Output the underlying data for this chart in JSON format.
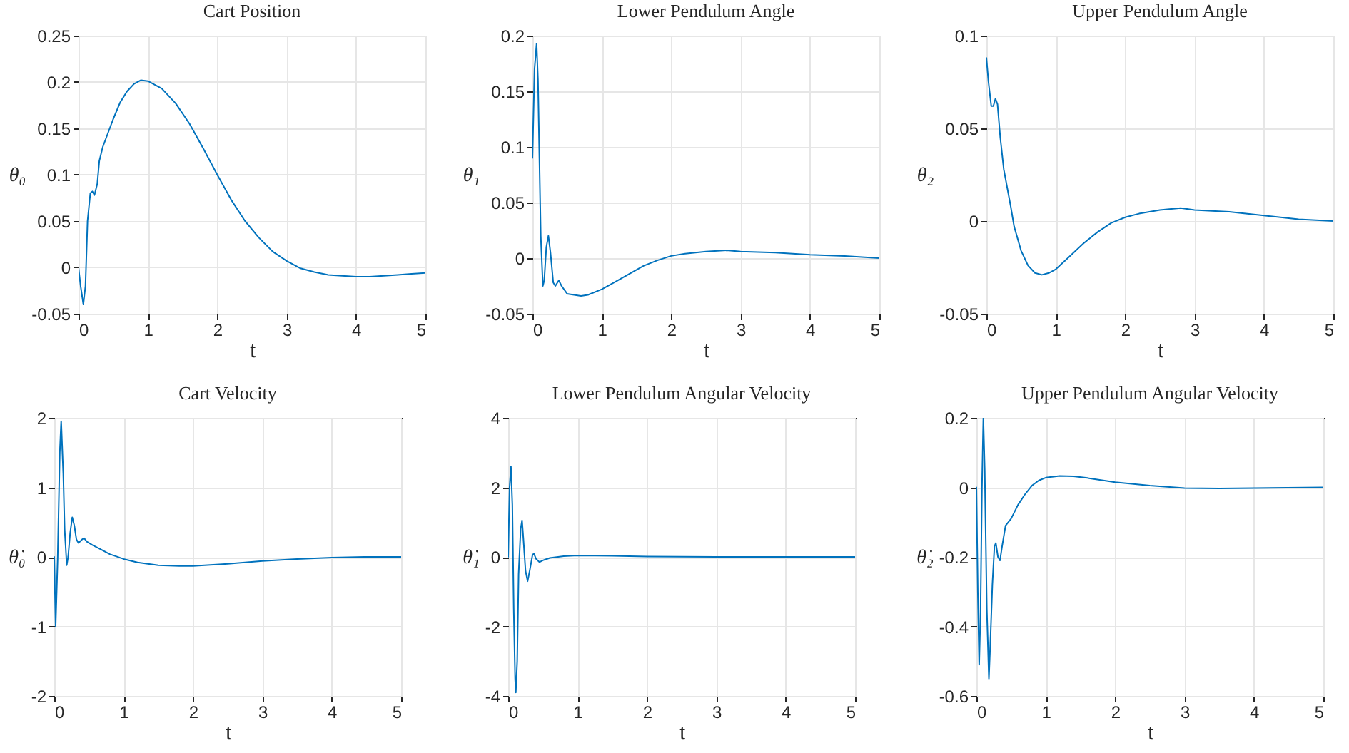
{
  "chart_data": [
    {
      "type": "line",
      "title": "Cart Position",
      "xlabel": "t",
      "ylabel": "θ₀",
      "grid": true,
      "xlim": [
        0,
        5
      ],
      "xticks": [
        0,
        1,
        2,
        3,
        4,
        5
      ],
      "ylim": [
        -0.05,
        0.25
      ],
      "yticks": [
        -0.05,
        0,
        0.05,
        0.1,
        0.15,
        0.2,
        0.25
      ],
      "x": [
        0,
        0.03,
        0.07,
        0.1,
        0.13,
        0.17,
        0.2,
        0.23,
        0.27,
        0.3,
        0.35,
        0.4,
        0.5,
        0.6,
        0.7,
        0.8,
        0.9,
        1.0,
        1.2,
        1.4,
        1.6,
        1.8,
        2.0,
        2.2,
        2.4,
        2.6,
        2.8,
        3.0,
        3.2,
        3.4,
        3.6,
        3.8,
        4.0,
        4.2,
        4.4,
        4.6,
        4.8,
        5
      ],
      "series": [
        {
          "color": "#0072bd",
          "values": [
            0,
            -0.02,
            -0.04,
            -0.02,
            0.05,
            0.08,
            0.082,
            0.078,
            0.09,
            0.115,
            0.13,
            0.14,
            0.16,
            0.178,
            0.19,
            0.198,
            0.202,
            0.201,
            0.193,
            0.177,
            0.155,
            0.128,
            0.1,
            0.073,
            0.05,
            0.032,
            0.017,
            0.007,
            -0.001,
            -0.005,
            -0.008,
            -0.009,
            -0.01,
            -0.01,
            -0.009,
            -0.008,
            -0.007,
            -0.006
          ]
        }
      ]
    },
    {
      "type": "line",
      "title": "Lower Pendulum Angle",
      "xlabel": "t",
      "ylabel": "θ₁",
      "grid": true,
      "xlim": [
        0,
        5
      ],
      "xticks": [
        0,
        1,
        2,
        3,
        4,
        5
      ],
      "ylim": [
        -0.05,
        0.2
      ],
      "yticks": [
        -0.05,
        0,
        0.05,
        0.1,
        0.15,
        0.2
      ],
      "x": [
        0,
        0.03,
        0.06,
        0.08,
        0.1,
        0.12,
        0.15,
        0.17,
        0.2,
        0.23,
        0.26,
        0.3,
        0.33,
        0.38,
        0.42,
        0.5,
        0.6,
        0.7,
        0.8,
        1.0,
        1.2,
        1.4,
        1.6,
        1.8,
        2.0,
        2.2,
        2.5,
        2.8,
        3.0,
        3.5,
        4.0,
        4.5,
        5
      ],
      "series": [
        {
          "color": "#0072bd",
          "values": [
            0.09,
            0.17,
            0.193,
            0.16,
            0.09,
            0.02,
            -0.025,
            -0.02,
            0.01,
            0.02,
            0.005,
            -0.022,
            -0.025,
            -0.02,
            -0.025,
            -0.032,
            -0.033,
            -0.034,
            -0.033,
            -0.028,
            -0.021,
            -0.014,
            -0.007,
            -0.002,
            0.002,
            0.004,
            0.006,
            0.007,
            0.006,
            0.005,
            0.003,
            0.002,
            0
          ]
        }
      ]
    },
    {
      "type": "line",
      "title": "Upper Pendulum Angle",
      "xlabel": "t",
      "ylabel": "θ₂",
      "grid": true,
      "xlim": [
        0,
        5
      ],
      "xticks": [
        0,
        1,
        2,
        3,
        4,
        5
      ],
      "ylim": [
        -0.05,
        0.1
      ],
      "yticks": [
        -0.05,
        0,
        0.05,
        0.1
      ],
      "x": [
        0,
        0.03,
        0.07,
        0.1,
        0.13,
        0.16,
        0.2,
        0.25,
        0.3,
        0.35,
        0.4,
        0.5,
        0.6,
        0.7,
        0.8,
        0.9,
        1.0,
        1.2,
        1.4,
        1.6,
        1.8,
        2.0,
        2.2,
        2.5,
        2.8,
        3.0,
        3.5,
        4.0,
        4.5,
        5
      ],
      "series": [
        {
          "color": "#0072bd",
          "values": [
            0.088,
            0.075,
            0.062,
            0.062,
            0.066,
            0.063,
            0.045,
            0.028,
            0.018,
            0.008,
            -0.003,
            -0.016,
            -0.024,
            -0.028,
            -0.029,
            -0.028,
            -0.026,
            -0.019,
            -0.012,
            -0.006,
            -0.001,
            0.002,
            0.004,
            0.006,
            0.007,
            0.006,
            0.005,
            0.003,
            0.001,
            0
          ]
        }
      ]
    },
    {
      "type": "line",
      "title": "Cart Velocity",
      "xlabel": "t",
      "ylabel": "θ̇₀",
      "grid": true,
      "xlim": [
        0,
        5
      ],
      "xticks": [
        0,
        1,
        2,
        3,
        4,
        5
      ],
      "ylim": [
        -2,
        2
      ],
      "yticks": [
        -2,
        -1,
        0,
        1,
        2
      ],
      "x": [
        0,
        0.02,
        0.05,
        0.08,
        0.1,
        0.13,
        0.15,
        0.18,
        0.2,
        0.23,
        0.26,
        0.29,
        0.32,
        0.35,
        0.4,
        0.43,
        0.47,
        0.55,
        0.65,
        0.8,
        1.0,
        1.2,
        1.5,
        1.8,
        2.0,
        2.5,
        3.0,
        3.5,
        4.0,
        4.5,
        5
      ],
      "series": [
        {
          "color": "#0072bd",
          "values": [
            0,
            -1.0,
            0,
            1.5,
            1.95,
            1.2,
            0.4,
            -0.12,
            0,
            0.35,
            0.57,
            0.45,
            0.25,
            0.2,
            0.25,
            0.27,
            0.22,
            0.17,
            0.12,
            0.04,
            -0.03,
            -0.08,
            -0.12,
            -0.13,
            -0.13,
            -0.1,
            -0.06,
            -0.03,
            -0.01,
            0,
            0
          ]
        }
      ]
    },
    {
      "type": "line",
      "title": "Lower Pendulum Angular Velocity",
      "xlabel": "t",
      "ylabel": "θ̇₁",
      "grid": true,
      "xlim": [
        0,
        5
      ],
      "xticks": [
        0,
        1,
        2,
        3,
        4,
        5
      ],
      "ylim": [
        -4,
        4
      ],
      "yticks": [
        -4,
        -2,
        0,
        2,
        4
      ],
      "x": [
        0,
        0.02,
        0.04,
        0.06,
        0.08,
        0.1,
        0.11,
        0.13,
        0.15,
        0.18,
        0.2,
        0.22,
        0.25,
        0.28,
        0.31,
        0.35,
        0.37,
        0.4,
        0.45,
        0.5,
        0.6,
        0.8,
        1.0,
        1.5,
        2,
        3,
        5
      ],
      "series": [
        {
          "color": "#0072bd",
          "values": [
            0,
            2.0,
            2.6,
            1.5,
            -1.5,
            -3.5,
            -3.9,
            -3.0,
            -0.5,
            0.8,
            1.05,
            0.5,
            -0.4,
            -0.7,
            -0.4,
            0.05,
            0.1,
            -0.05,
            -0.15,
            -0.1,
            -0.03,
            0.02,
            0.04,
            0.03,
            0.01,
            0,
            0
          ]
        }
      ]
    },
    {
      "type": "line",
      "title": "Upper Pendulum Angular Velocity",
      "xlabel": "t",
      "ylabel": "θ̇₂",
      "grid": true,
      "xlim": [
        0,
        5
      ],
      "xticks": [
        0,
        1,
        2,
        3,
        4,
        5
      ],
      "ylim": [
        -0.6,
        0.2
      ],
      "yticks": [
        -0.6,
        -0.4,
        -0.2,
        0,
        0.2
      ],
      "x": [
        0,
        0.02,
        0.04,
        0.06,
        0.08,
        0.1,
        0.12,
        0.15,
        0.18,
        0.2,
        0.23,
        0.26,
        0.28,
        0.31,
        0.34,
        0.37,
        0.42,
        0.5,
        0.6,
        0.7,
        0.8,
        0.9,
        1.0,
        1.2,
        1.4,
        1.6,
        2.0,
        2.5,
        3.0,
        3.5,
        4,
        5
      ],
      "series": [
        {
          "color": "#0072bd",
          "values": [
            0,
            -0.3,
            -0.51,
            -0.35,
            0,
            0.2,
            0.05,
            -0.35,
            -0.55,
            -0.45,
            -0.28,
            -0.17,
            -0.16,
            -0.2,
            -0.21,
            -0.17,
            -0.11,
            -0.09,
            -0.05,
            -0.02,
            0.005,
            0.02,
            0.028,
            0.033,
            0.032,
            0.027,
            0.015,
            0.005,
            -0.002,
            -0.003,
            -0.002,
            0
          ]
        }
      ]
    }
  ]
}
